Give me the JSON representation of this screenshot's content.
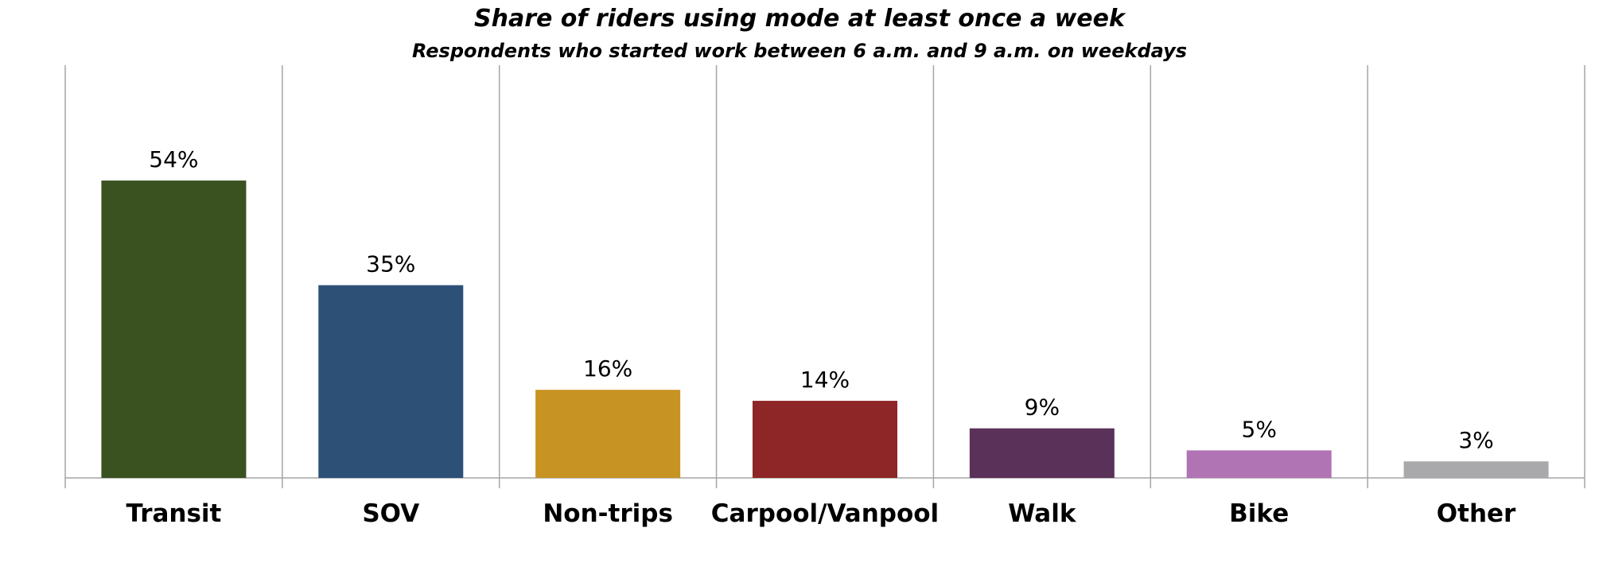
{
  "chart_data": {
    "type": "bar",
    "title": "Share of riders using mode at least once a week",
    "subtitle": "Respondents who started work between 6 a.m. and 9 a.m. on weekdays",
    "categories": [
      "Transit",
      "SOV",
      "Non-trips",
      "Carpool/Vanpool",
      "Walk",
      "Bike",
      "Other"
    ],
    "values": [
      54,
      35,
      16,
      14,
      9,
      5,
      3
    ],
    "value_labels": [
      "54%",
      "35%",
      "16%",
      "14%",
      "9%",
      "5%",
      "3%"
    ],
    "colors": [
      "#3a5220",
      "#2d5077",
      "#c79322",
      "#8e2627",
      "#5a3259",
      "#b073b4",
      "#a9a9ab"
    ],
    "ylim": [
      0,
      75
    ],
    "grid": "vertical category separators",
    "legend": "none"
  }
}
